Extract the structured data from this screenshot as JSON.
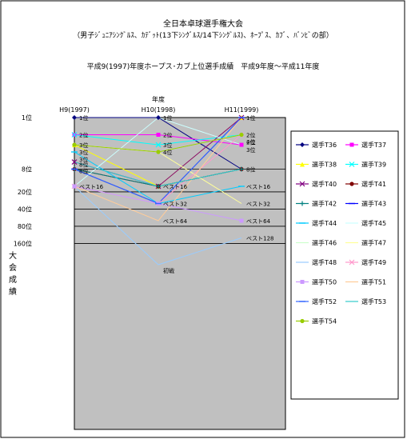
{
  "titles": {
    "line1": "全日本卓球選手権大会",
    "line2": "（男子ｼﾞｭﾆｱｼﾝｸﾞﾙｽ、ｶﾃﾞｯﾄ(13下ｼﾝｸﾞﾙｽ/14下ｼﾝｸﾞﾙｽ)、ﾎｰﾌﾟｽ、ｶﾌﾞ、ﾊﾞﾝﾋﾞの部）",
    "line3": "平成9(1997)年度ホープス･カブ上位選手成績　平成9年度～平成11年度"
  },
  "colors": {
    "plot_bg": "#c0c0c0",
    "grid": "#000000"
  },
  "chart_data": {
    "type": "line",
    "x_title": "年度",
    "y_title": "大会成績",
    "x": [
      "H9(1997)",
      "H10(1998)",
      "H11(1999)"
    ],
    "y_ticks": [
      "1位",
      "8位",
      "20位",
      "40位",
      "80位",
      "160位"
    ],
    "y_scale": "log2",
    "y_range": [
      "1位",
      "初戦"
    ],
    "levels": [
      "1位",
      "2位",
      "3位",
      "4位",
      "6位",
      "8位",
      "ベスト16",
      "ベスト32",
      "ベスト64",
      "ベスト128",
      "初戦"
    ],
    "level_ranks": [
      1,
      2,
      3,
      4,
      6,
      8,
      16,
      32,
      64,
      128,
      256
    ],
    "legend_position": "right",
    "grid": true,
    "series": [
      {
        "name": "選手T36",
        "color": "#000080",
        "marker": "diamond",
        "results": [
          "1位",
          "1位",
          "8位"
        ]
      },
      {
        "name": "選手T37",
        "color": "#ff00ff",
        "marker": "square",
        "results": [
          "2位",
          "2位",
          "3位"
        ]
      },
      {
        "name": "選手T38",
        "color": "#ffff00",
        "marker": "triangle",
        "results": [
          "3位",
          "ベスト16",
          "1位"
        ]
      },
      {
        "name": "選手T39",
        "color": "#00ffff",
        "marker": "x",
        "results": [
          "2位",
          "3位",
          "2位"
        ]
      },
      {
        "name": "選手T40",
        "color": "#800080",
        "marker": "x",
        "results": [
          "6位",
          "ベスト16",
          "1位"
        ]
      },
      {
        "name": "選手T41",
        "color": "#800000",
        "marker": "circle",
        "results": [
          "8位",
          "ベスト16",
          "8位"
        ]
      },
      {
        "name": "選手T42",
        "color": "#008080",
        "marker": "plus",
        "results": [
          "8位",
          "ベスト16",
          "8位"
        ]
      },
      {
        "name": "選手T43",
        "color": "#0000ff",
        "marker": "dash",
        "results": [
          "8位",
          "ベスト32",
          "1位"
        ]
      },
      {
        "name": "選手T44",
        "color": "#00ccff",
        "marker": "dash",
        "results": [
          "4位",
          "ベスト32",
          "ベスト16"
        ]
      },
      {
        "name": "選手T45",
        "color": "#ccffff",
        "marker": "none",
        "results": [
          "ベスト16",
          "1位",
          "3位"
        ]
      },
      {
        "name": "選手T46",
        "color": "#ccffcc",
        "marker": "none",
        "results": [
          "3位",
          "4位",
          "2位"
        ]
      },
      {
        "name": "選手T47",
        "color": "#ffff99",
        "marker": "none",
        "results": [
          "3位",
          "4位",
          "ベスト32"
        ]
      },
      {
        "name": "選手T48",
        "color": "#99ccff",
        "marker": "none",
        "results": [
          "ベスト16",
          "初戦",
          "ベスト128"
        ]
      },
      {
        "name": "選手T49",
        "color": "#ff99cc",
        "marker": "x",
        "results": [
          "ベスト16",
          "ベスト32",
          "2位"
        ]
      },
      {
        "name": "選手T50",
        "color": "#cc99ff",
        "marker": "square",
        "results": [
          "ベスト16",
          "ベスト32",
          "ベスト64"
        ]
      },
      {
        "name": "選手T51",
        "color": "#ffcc99",
        "marker": "none",
        "results": [
          "ベスト16",
          "ベスト64",
          "1位"
        ]
      },
      {
        "name": "選手T52",
        "color": "#3366ff",
        "marker": "dash",
        "results": [
          "8位",
          "ベスト32",
          "1位"
        ]
      },
      {
        "name": "選手T53",
        "color": "#33cccc",
        "marker": "none",
        "results": [
          "6位",
          "ベスト16",
          "8位"
        ]
      },
      {
        "name": "選手T54",
        "color": "#99cc00",
        "marker": "circle",
        "results": [
          "3位",
          "4位",
          "2位"
        ]
      }
    ],
    "point_labels": [
      {
        "x": "H9(1997)",
        "texts": [
          "1位",
          "2位",
          "3位",
          "3位",
          "3位",
          "8位",
          "8位",
          "ベスト16"
        ]
      },
      {
        "x": "H10(1998)",
        "texts": [
          "1位",
          "2位",
          "3位",
          "4位",
          "ベスト16",
          "ベスト32",
          "ベスト64",
          "初戦"
        ]
      },
      {
        "x": "H11(1999)",
        "texts": [
          "1位",
          "2位",
          "2位",
          "4位",
          "3位",
          "8位",
          "ベスト16",
          "ベスト32",
          "ベスト64",
          "ベスト128"
        ]
      }
    ]
  }
}
